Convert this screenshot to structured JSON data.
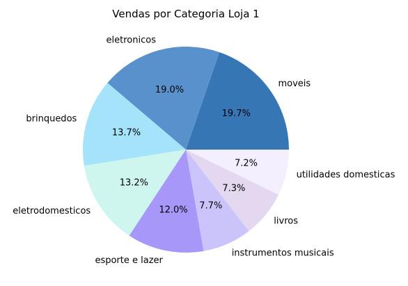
{
  "chart_data": {
    "type": "pie",
    "title": "Vendas por Categoria Loja 1",
    "start_angle_deg": 0,
    "direction": "counterclockwise",
    "slices": [
      {
        "label": "moveis",
        "value": 19.7,
        "pct_label": "19.7%",
        "color": "#3776b5"
      },
      {
        "label": "eletronicos",
        "value": 19.0,
        "pct_label": "19.0%",
        "color": "#5891cb"
      },
      {
        "label": "brinquedos",
        "value": 13.7,
        "pct_label": "13.7%",
        "color": "#a4e3f9"
      },
      {
        "label": "eletrodomesticos",
        "value": 13.2,
        "pct_label": "13.2%",
        "color": "#cff6ee"
      },
      {
        "label": "esporte e lazer",
        "value": 12.0,
        "pct_label": "12.0%",
        "color": "#a697f9"
      },
      {
        "label": "instrumentos musicais",
        "value": 7.7,
        "pct_label": "7.7%",
        "color": "#cbc4fb"
      },
      {
        "label": "livros",
        "value": 7.3,
        "pct_label": "7.3%",
        "color": "#e3d8ef"
      },
      {
        "label": "utilidades domesticas",
        "value": 7.2,
        "pct_label": "7.2%",
        "color": "#f4effe"
      }
    ]
  }
}
